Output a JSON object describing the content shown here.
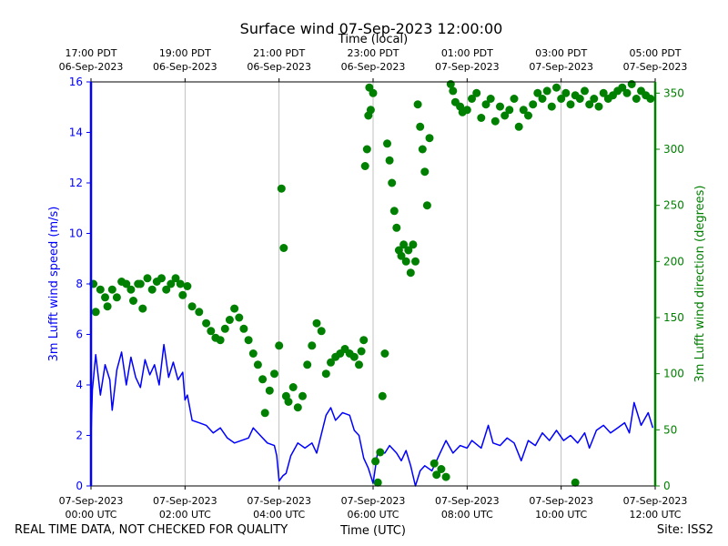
{
  "chart_data": {
    "type": "line",
    "title": "Surface wind 07-Sep-2023 12:00:00",
    "xlabel": "Time (UTC)",
    "top_xlabel": "Time (local)",
    "ylabel_left": "3m Lufft wind speed (m/s)",
    "ylabel_right": "3m Lufft wind direction (degrees)",
    "footer_left": "REAL TIME DATA, NOT CHECKED FOR QUALITY",
    "footer_right": "Site: ISS2",
    "xlim_hours": [
      0,
      12
    ],
    "ylim_left": [
      0,
      16
    ],
    "ylim_right": [
      0,
      360
    ],
    "grid": "vertical",
    "colors": {
      "speed": "#0000ff",
      "direction": "#008000"
    },
    "bottom_ticks": [
      {
        "line1": "07-Sep-2023",
        "line2": "00:00 UTC"
      },
      {
        "line1": "07-Sep-2023",
        "line2": "02:00 UTC"
      },
      {
        "line1": "07-Sep-2023",
        "line2": "04:00 UTC"
      },
      {
        "line1": "07-Sep-2023",
        "line2": "06:00 UTC"
      },
      {
        "line1": "07-Sep-2023",
        "line2": "08:00 UTC"
      },
      {
        "line1": "07-Sep-2023",
        "line2": "10:00 UTC"
      },
      {
        "line1": "07-Sep-2023",
        "line2": "12:00 UTC"
      }
    ],
    "top_ticks": [
      {
        "line1": "17:00 PDT",
        "line2": "06-Sep-2023"
      },
      {
        "line1": "19:00 PDT",
        "line2": "06-Sep-2023"
      },
      {
        "line1": "21:00 PDT",
        "line2": "06-Sep-2023"
      },
      {
        "line1": "23:00 PDT",
        "line2": "06-Sep-2023"
      },
      {
        "line1": "01:00 PDT",
        "line2": "07-Sep-2023"
      },
      {
        "line1": "03:00 PDT",
        "line2": "07-Sep-2023"
      },
      {
        "line1": "05:00 PDT",
        "line2": "07-Sep-2023"
      }
    ],
    "left_ticks": [
      0,
      2,
      4,
      6,
      8,
      10,
      12,
      14,
      16
    ],
    "right_ticks": [
      0,
      50,
      100,
      150,
      200,
      250,
      300,
      350
    ],
    "series": [
      {
        "name": "3m Lufft wind speed",
        "axis": "left",
        "style": "line",
        "points": [
          [
            0.0,
            1.9
          ],
          [
            0.03,
            3.8
          ],
          [
            0.1,
            5.2
          ],
          [
            0.2,
            3.6
          ],
          [
            0.3,
            4.8
          ],
          [
            0.4,
            4.2
          ],
          [
            0.45,
            3.0
          ],
          [
            0.55,
            4.6
          ],
          [
            0.65,
            5.3
          ],
          [
            0.75,
            4.0
          ],
          [
            0.85,
            5.1
          ],
          [
            0.95,
            4.3
          ],
          [
            1.05,
            3.9
          ],
          [
            1.15,
            5.0
          ],
          [
            1.25,
            4.4
          ],
          [
            1.35,
            4.8
          ],
          [
            1.45,
            4.0
          ],
          [
            1.55,
            5.6
          ],
          [
            1.65,
            4.3
          ],
          [
            1.75,
            4.9
          ],
          [
            1.85,
            4.2
          ],
          [
            1.95,
            4.5
          ],
          [
            2.0,
            3.4
          ],
          [
            2.05,
            3.6
          ],
          [
            2.15,
            2.6
          ],
          [
            2.3,
            2.5
          ],
          [
            2.45,
            2.4
          ],
          [
            2.6,
            2.1
          ],
          [
            2.75,
            2.3
          ],
          [
            2.9,
            1.9
          ],
          [
            3.05,
            1.7
          ],
          [
            3.2,
            1.8
          ],
          [
            3.35,
            1.9
          ],
          [
            3.45,
            2.3
          ],
          [
            3.6,
            2.0
          ],
          [
            3.75,
            1.7
          ],
          [
            3.9,
            1.6
          ],
          [
            3.95,
            1.2
          ],
          [
            4.0,
            0.2
          ],
          [
            4.08,
            0.4
          ],
          [
            4.15,
            0.5
          ],
          [
            4.25,
            1.2
          ],
          [
            4.4,
            1.7
          ],
          [
            4.55,
            1.5
          ],
          [
            4.7,
            1.7
          ],
          [
            4.8,
            1.3
          ],
          [
            5.0,
            2.8
          ],
          [
            5.1,
            3.1
          ],
          [
            5.2,
            2.6
          ],
          [
            5.35,
            2.9
          ],
          [
            5.5,
            2.8
          ],
          [
            5.6,
            2.2
          ],
          [
            5.7,
            2.0
          ],
          [
            5.8,
            1.1
          ],
          [
            5.9,
            0.7
          ],
          [
            6.0,
            0.1
          ],
          [
            6.1,
            1.4
          ],
          [
            6.25,
            1.3
          ],
          [
            6.35,
            1.6
          ],
          [
            6.5,
            1.3
          ],
          [
            6.6,
            1.0
          ],
          [
            6.7,
            1.4
          ],
          [
            6.8,
            0.8
          ],
          [
            6.9,
            0.0
          ],
          [
            7.0,
            0.6
          ],
          [
            7.1,
            0.8
          ],
          [
            7.25,
            0.6
          ],
          [
            7.4,
            1.2
          ],
          [
            7.55,
            1.8
          ],
          [
            7.7,
            1.3
          ],
          [
            7.85,
            1.6
          ],
          [
            8.0,
            1.5
          ],
          [
            8.1,
            1.8
          ],
          [
            8.3,
            1.5
          ],
          [
            8.45,
            2.4
          ],
          [
            8.55,
            1.7
          ],
          [
            8.7,
            1.6
          ],
          [
            8.85,
            1.9
          ],
          [
            9.0,
            1.7
          ],
          [
            9.15,
            1.0
          ],
          [
            9.3,
            1.8
          ],
          [
            9.45,
            1.6
          ],
          [
            9.6,
            2.1
          ],
          [
            9.75,
            1.8
          ],
          [
            9.9,
            2.2
          ],
          [
            10.05,
            1.8
          ],
          [
            10.2,
            2.0
          ],
          [
            10.35,
            1.7
          ],
          [
            10.5,
            2.1
          ],
          [
            10.6,
            1.5
          ],
          [
            10.75,
            2.2
          ],
          [
            10.9,
            2.4
          ],
          [
            11.05,
            2.1
          ],
          [
            11.2,
            2.3
          ],
          [
            11.35,
            2.5
          ],
          [
            11.45,
            2.1
          ],
          [
            11.55,
            3.3
          ],
          [
            11.7,
            2.4
          ],
          [
            11.85,
            2.9
          ],
          [
            11.95,
            2.3
          ]
        ]
      },
      {
        "name": "3m Lufft wind direction",
        "axis": "right",
        "style": "dots",
        "points": [
          [
            0.05,
            180
          ],
          [
            0.1,
            155
          ],
          [
            0.2,
            175
          ],
          [
            0.3,
            168
          ],
          [
            0.35,
            160
          ],
          [
            0.45,
            175
          ],
          [
            0.55,
            168
          ],
          [
            0.65,
            182
          ],
          [
            0.75,
            180
          ],
          [
            0.85,
            175
          ],
          [
            0.9,
            165
          ],
          [
            1.0,
            180
          ],
          [
            1.05,
            180
          ],
          [
            1.1,
            158
          ],
          [
            1.2,
            185
          ],
          [
            1.3,
            175
          ],
          [
            1.4,
            182
          ],
          [
            1.5,
            185
          ],
          [
            1.6,
            175
          ],
          [
            1.7,
            180
          ],
          [
            1.8,
            185
          ],
          [
            1.9,
            180
          ],
          [
            1.95,
            170
          ],
          [
            2.05,
            178
          ],
          [
            2.15,
            160
          ],
          [
            2.3,
            155
          ],
          [
            2.45,
            145
          ],
          [
            2.55,
            138
          ],
          [
            2.65,
            132
          ],
          [
            2.75,
            130
          ],
          [
            2.85,
            140
          ],
          [
            2.95,
            148
          ],
          [
            3.05,
            158
          ],
          [
            3.15,
            150
          ],
          [
            3.25,
            140
          ],
          [
            3.35,
            130
          ],
          [
            3.45,
            118
          ],
          [
            3.55,
            108
          ],
          [
            3.65,
            95
          ],
          [
            3.7,
            65
          ],
          [
            3.8,
            85
          ],
          [
            3.9,
            100
          ],
          [
            4.0,
            125
          ],
          [
            4.05,
            265
          ],
          [
            4.1,
            212
          ],
          [
            4.15,
            80
          ],
          [
            4.2,
            75
          ],
          [
            4.3,
            88
          ],
          [
            4.4,
            70
          ],
          [
            4.5,
            80
          ],
          [
            4.6,
            108
          ],
          [
            4.7,
            125
          ],
          [
            4.8,
            145
          ],
          [
            4.9,
            138
          ],
          [
            5.0,
            100
          ],
          [
            5.1,
            110
          ],
          [
            5.2,
            115
          ],
          [
            5.3,
            118
          ],
          [
            5.4,
            122
          ],
          [
            5.5,
            118
          ],
          [
            5.6,
            115
          ],
          [
            5.7,
            108
          ],
          [
            5.75,
            120
          ],
          [
            5.8,
            130
          ],
          [
            5.83,
            285
          ],
          [
            5.87,
            300
          ],
          [
            5.9,
            330
          ],
          [
            5.92,
            355
          ],
          [
            5.95,
            335
          ],
          [
            6.0,
            350
          ],
          [
            6.05,
            22
          ],
          [
            6.1,
            3
          ],
          [
            6.15,
            30
          ],
          [
            6.2,
            80
          ],
          [
            6.25,
            118
          ],
          [
            6.3,
            305
          ],
          [
            6.35,
            290
          ],
          [
            6.4,
            270
          ],
          [
            6.45,
            245
          ],
          [
            6.5,
            230
          ],
          [
            6.55,
            210
          ],
          [
            6.6,
            205
          ],
          [
            6.65,
            215
          ],
          [
            6.7,
            200
          ],
          [
            6.75,
            210
          ],
          [
            6.8,
            190
          ],
          [
            6.85,
            215
          ],
          [
            6.9,
            200
          ],
          [
            6.95,
            340
          ],
          [
            7.0,
            320
          ],
          [
            7.05,
            300
          ],
          [
            7.1,
            280
          ],
          [
            7.15,
            250
          ],
          [
            7.2,
            310
          ],
          [
            7.3,
            20
          ],
          [
            7.35,
            10
          ],
          [
            7.45,
            15
          ],
          [
            7.55,
            8
          ],
          [
            7.65,
            358
          ],
          [
            7.7,
            352
          ],
          [
            7.75,
            342
          ],
          [
            7.85,
            338
          ],
          [
            7.9,
            333
          ],
          [
            8.0,
            335
          ],
          [
            8.1,
            345
          ],
          [
            8.2,
            350
          ],
          [
            8.3,
            328
          ],
          [
            8.4,
            340
          ],
          [
            8.5,
            345
          ],
          [
            8.6,
            325
          ],
          [
            8.7,
            338
          ],
          [
            8.8,
            330
          ],
          [
            8.9,
            335
          ],
          [
            9.0,
            345
          ],
          [
            9.1,
            320
          ],
          [
            9.2,
            335
          ],
          [
            9.3,
            330
          ],
          [
            9.4,
            340
          ],
          [
            9.5,
            350
          ],
          [
            9.6,
            345
          ],
          [
            9.7,
            352
          ],
          [
            9.8,
            338
          ],
          [
            9.9,
            355
          ],
          [
            10.0,
            345
          ],
          [
            10.1,
            350
          ],
          [
            10.2,
            340
          ],
          [
            10.3,
            348
          ],
          [
            10.4,
            345
          ],
          [
            10.5,
            352
          ],
          [
            10.6,
            340
          ],
          [
            10.7,
            345
          ],
          [
            10.8,
            338
          ],
          [
            10.9,
            350
          ],
          [
            11.0,
            345
          ],
          [
            11.1,
            348
          ],
          [
            11.2,
            352
          ],
          [
            11.3,
            355
          ],
          [
            11.4,
            350
          ],
          [
            11.5,
            358
          ],
          [
            11.6,
            345
          ],
          [
            11.7,
            352
          ],
          [
            11.8,
            348
          ],
          [
            11.9,
            345
          ],
          [
            10.3,
            3
          ]
        ]
      }
    ]
  }
}
